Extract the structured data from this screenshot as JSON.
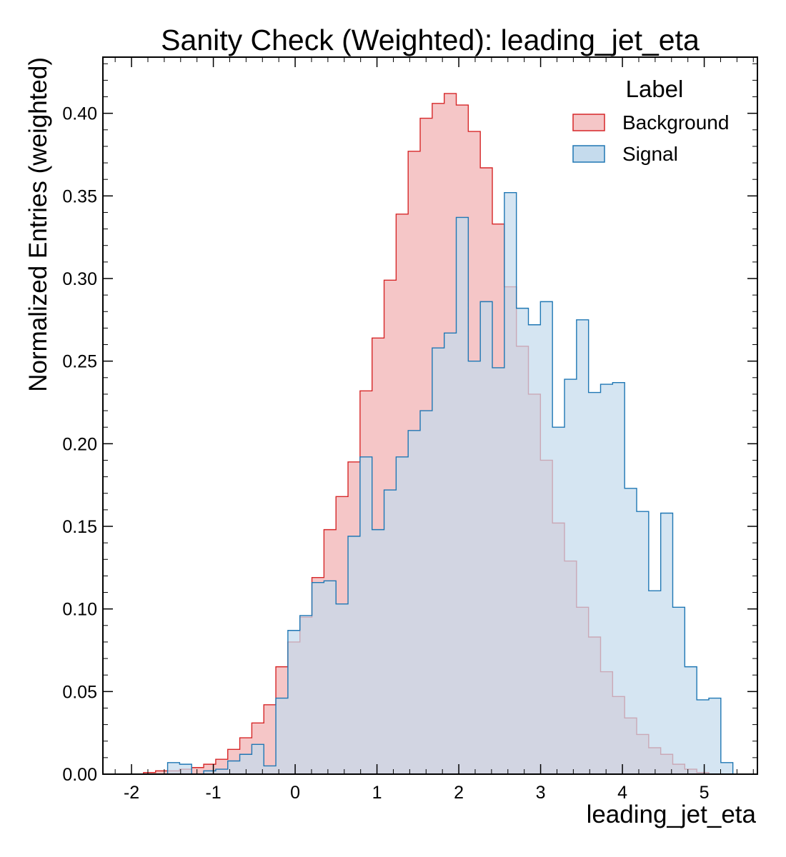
{
  "chart_data": {
    "type": "histogram",
    "title": "Sanity Check (Weighted): leading_jet_eta",
    "xlabel": "leading_jet_eta",
    "ylabel": "Normalized Entries (weighted)",
    "xlim": [
      -2.35,
      5.65
    ],
    "ylim": [
      0,
      0.434
    ],
    "xticks": [
      "-2",
      "-1",
      "0",
      "1",
      "2",
      "3",
      "4",
      "5"
    ],
    "yticks": [
      "0.00",
      "0.05",
      "0.10",
      "0.15",
      "0.20",
      "0.25",
      "0.30",
      "0.35",
      "0.40"
    ],
    "legend": {
      "title": "Label",
      "position": "top-right"
    },
    "bin_start": -2.0,
    "bin_width": 0.147,
    "series": [
      {
        "name": "Background",
        "color": "#d62728",
        "fill": "#f5c6c7",
        "values": [
          0,
          0.001,
          0.002,
          0.002,
          0.003,
          0.004,
          0.006,
          0.009,
          0.015,
          0.022,
          0.031,
          0.042,
          0.065,
          0.08,
          0.095,
          0.119,
          0.148,
          0.168,
          0.189,
          0.232,
          0.264,
          0.299,
          0.339,
          0.377,
          0.397,
          0.406,
          0.412,
          0.405,
          0.389,
          0.367,
          0.333,
          0.295,
          0.259,
          0.23,
          0.19,
          0.152,
          0.129,
          0.101,
          0.083,
          0.062,
          0.047,
          0.034,
          0.024,
          0.016,
          0.012,
          0.006,
          0.003,
          0.001,
          0,
          0
        ]
      },
      {
        "name": "Signal",
        "color": "#1f77b4",
        "fill": "#c5dbed",
        "values": [
          0,
          0,
          0,
          0.007,
          0.006,
          0,
          0.002,
          0.003,
          0.008,
          0.012,
          0.018,
          0.005,
          0.046,
          0.087,
          0.096,
          0.116,
          0.117,
          0.103,
          0.144,
          0.192,
          0.148,
          0.172,
          0.192,
          0.208,
          0.22,
          0.258,
          0.267,
          0.337,
          0.25,
          0.286,
          0.246,
          0.352,
          0.282,
          0.272,
          0.286,
          0.21,
          0.239,
          0.275,
          0.231,
          0.236,
          0.237,
          0.173,
          0.159,
          0.111,
          0.158,
          0.101,
          0.065,
          0.045,
          0.046,
          0.007
        ]
      }
    ]
  }
}
